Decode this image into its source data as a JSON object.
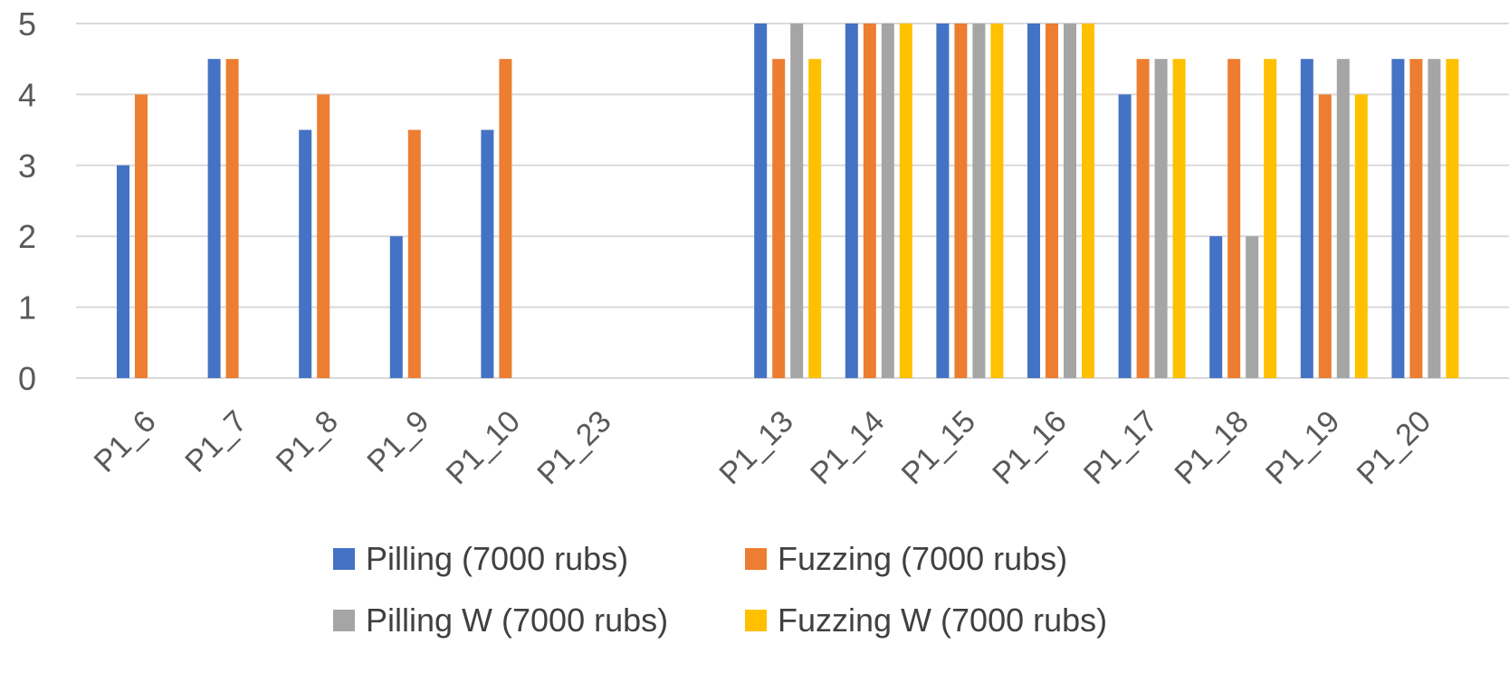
{
  "chart_data": {
    "type": "bar",
    "categories": [
      "P1_6",
      "P1_7",
      "P1_8",
      "P1_9",
      "P1_10",
      "P1_23",
      "",
      "P1_13",
      "P1_14",
      "P1_15",
      "P1_16",
      "P1_17",
      "P1_18",
      "P1_19",
      "P1_20"
    ],
    "series": [
      {
        "name": "Pilling (7000 rubs)",
        "color": "#4472C4",
        "values": [
          3,
          4.5,
          3.5,
          2,
          3.5,
          null,
          null,
          5,
          5,
          5,
          5,
          4,
          2,
          4.5,
          4.5
        ]
      },
      {
        "name": "Fuzzing (7000 rubs)",
        "color": "#ED7D31",
        "values": [
          4,
          4.5,
          4,
          3.5,
          4.5,
          null,
          null,
          4.5,
          5,
          5,
          5,
          4.5,
          4.5,
          4,
          4.5
        ]
      },
      {
        "name": "Pilling W (7000 rubs)",
        "color": "#A5A5A5",
        "values": [
          null,
          null,
          null,
          null,
          null,
          null,
          null,
          5,
          5,
          5,
          5,
          4.5,
          2,
          4.5,
          4.5
        ]
      },
      {
        "name": "Fuzzing W (7000 rubs)",
        "color": "#FFC000",
        "values": [
          null,
          null,
          null,
          null,
          null,
          null,
          null,
          4.5,
          5,
          5,
          5,
          4.5,
          4.5,
          4,
          4.5
        ]
      }
    ],
    "yticks": [
      "0",
      "1",
      "2",
      "3",
      "4",
      "5"
    ],
    "ylim": [
      0,
      5
    ],
    "grid": true,
    "legend_position": "bottom",
    "gridline_color": "#D9D9D9"
  }
}
